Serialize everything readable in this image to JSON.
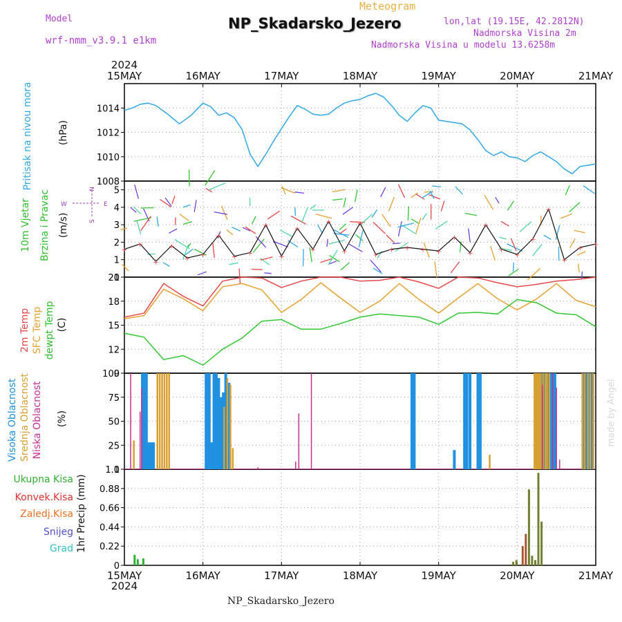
{
  "header": {
    "model_label": "Model",
    "model_name": "wrf-nmm_v3.9.1 e1km",
    "meteogram_label": "Meteogram",
    "station": "NP_Skadarsko_Jezero",
    "lonlat": "lon,lat (19.15E, 42.2812N)",
    "elevation": "Nadmorska Visina 2m",
    "model_elevation": "Nadmorska Visina u modelu 13.6258m",
    "footer_station": "NP_Skadarsko_Jezero",
    "watermark": "made by Angel"
  },
  "time_axis": {
    "year": "2024",
    "ticks": [
      "15MAY",
      "16MAY",
      "17MAY",
      "18MAY",
      "19MAY",
      "20MAY",
      "21MAY"
    ]
  },
  "colors": {
    "pressure": "#30a8e8",
    "temp2m": "#e84848",
    "sfc": "#e8a030",
    "dewpt": "#30c830",
    "high_cloud": "#2090e0",
    "mid_cloud": "#d8a030",
    "low_cloud": "#c83090",
    "total_precip": "#30b030",
    "convective": "#e03030",
    "frozen": "#e87020",
    "snow": "#5050d0",
    "graupel": "#30c0c0",
    "precip_bar": "#708030"
  },
  "chart_data": [
    {
      "type": "line",
      "panel": "pressure",
      "ylabel_name": "Pritisak na nivou mora",
      "ylabel_unit": "(hPa)",
      "ylim": [
        1008,
        1016
      ],
      "yticks": [
        "1014",
        "1012",
        "1010",
        "1008"
      ],
      "x_days": [
        0,
        0.1,
        0.2,
        0.3,
        0.4,
        0.55,
        0.7,
        0.85,
        1.0,
        1.1,
        1.2,
        1.3,
        1.4,
        1.5,
        1.6,
        1.7,
        1.8,
        1.9,
        2.0,
        2.1,
        2.2,
        2.3,
        2.4,
        2.5,
        2.6,
        2.7,
        2.8,
        2.9,
        3.0,
        3.1,
        3.2,
        3.3,
        3.4,
        3.5,
        3.6,
        3.7,
        3.8,
        3.9,
        4.0,
        4.1,
        4.2,
        4.3,
        4.4,
        4.5,
        4.6,
        4.7,
        4.8,
        4.9,
        5.0,
        5.1,
        5.2,
        5.3,
        5.4,
        5.5,
        5.6,
        5.7,
        5.8,
        5.9,
        6.0
      ],
      "series": [
        {
          "values": [
            1013.8,
            1014.0,
            1014.3,
            1014.4,
            1014.2,
            1013.5,
            1012.7,
            1013.4,
            1014.4,
            1014.1,
            1013.4,
            1013.6,
            1013.2,
            1012.2,
            1010.2,
            1009.2,
            1010.2,
            1011.3,
            1012.3,
            1013.3,
            1014.2,
            1013.9,
            1013.5,
            1013.4,
            1013.5,
            1014.0,
            1014.4,
            1014.6,
            1014.7,
            1015.0,
            1015.2,
            1014.9,
            1014.2,
            1013.4,
            1012.9,
            1013.6,
            1014.2,
            1014.0,
            1013.0,
            1012.9,
            1012.8,
            1012.7,
            1012.2,
            1011.4,
            1010.5,
            1010.1,
            1010.4,
            1010.0,
            1009.9,
            1009.6,
            1010.1,
            1010.4,
            1010.0,
            1009.6,
            1009.0,
            1008.6,
            1009.2,
            1009.3,
            1009.4
          ]
        }
      ]
    },
    {
      "type": "line",
      "panel": "wind",
      "ylabel_name1": "10m Vjetar",
      "ylabel_name2": "Brzina i Pravac",
      "ylabel_unit": "(m/s)",
      "compass": {
        "n": "N",
        "s": "S",
        "e": "E",
        "w": "W"
      },
      "ylim": [
        0,
        5.5
      ],
      "yticks": [
        "5",
        "4",
        "3",
        "2",
        "1",
        "0"
      ],
      "x_days": [
        0,
        0.2,
        0.4,
        0.6,
        0.8,
        1.0,
        1.2,
        1.4,
        1.6,
        1.8,
        2.0,
        2.2,
        2.4,
        2.6,
        2.8,
        3.0,
        3.2,
        3.4,
        3.6,
        3.8,
        4.0,
        4.2,
        4.4,
        4.6,
        4.8,
        5.0,
        5.2,
        5.4,
        5.6,
        5.8,
        6.0
      ],
      "series": [
        {
          "name": "speed",
          "values": [
            1.6,
            1.9,
            0.9,
            1.8,
            1.1,
            1.3,
            2.4,
            1.2,
            1.4,
            3.0,
            1.2,
            2.8,
            1.6,
            3.2,
            1.5,
            3.1,
            1.3,
            1.6,
            1.7,
            1.6,
            1.5,
            2.3,
            1.4,
            3.0,
            1.6,
            1.3,
            2.2,
            3.9,
            1.0,
            1.7,
            1.9
          ]
        }
      ]
    },
    {
      "type": "line",
      "panel": "temperature",
      "ylabel_names": [
        "2m Temp",
        "SFC Temp",
        "dewpt Temp"
      ],
      "ylabel_unit": "(C)",
      "ylim": [
        9,
        21
      ],
      "yticks": [
        "21",
        "18",
        "15",
        "12",
        "9"
      ],
      "x_days": [
        0,
        0.25,
        0.5,
        0.75,
        1.0,
        1.25,
        1.5,
        1.75,
        2.0,
        2.25,
        2.5,
        2.75,
        3.0,
        3.25,
        3.5,
        3.75,
        4.0,
        4.25,
        4.5,
        4.75,
        5.0,
        5.25,
        5.5,
        5.75,
        6.0
      ],
      "series": [
        {
          "name": "2m Temp",
          "values": [
            16,
            16.5,
            20.2,
            18.6,
            17.4,
            20.5,
            21,
            20.9,
            19.7,
            20.5,
            21,
            21.5,
            20.5,
            20.6,
            21,
            20.4,
            19.6,
            21.3,
            20.9,
            20.3,
            19.8,
            20.1,
            20.5,
            20.7,
            21
          ]
        },
        {
          "name": "SFC Temp",
          "values": [
            15.8,
            16.2,
            19.5,
            18.3,
            16.8,
            19.8,
            20.2,
            19.4,
            16.6,
            18.2,
            20.3,
            18.4,
            16.6,
            18,
            20.2,
            18.2,
            16.5,
            18.4,
            20.2,
            18.3,
            16.9,
            18.3,
            20.2,
            18.1,
            17.3
          ]
        },
        {
          "name": "dewpt Temp",
          "values": [
            14,
            13.5,
            10.7,
            11.2,
            10,
            12,
            13.4,
            15.5,
            15.7,
            14.5,
            14.5,
            15.2,
            16,
            16.4,
            16.2,
            16,
            15.1,
            16.5,
            16.6,
            16.4,
            18.2,
            17.8,
            16.5,
            16.3,
            14.8
          ]
        }
      ]
    },
    {
      "type": "bar",
      "panel": "clouds",
      "ylabel_names": [
        "Visoka Oblacnost",
        "Srednja Oblacnost",
        "Niska Oblacnost"
      ],
      "ylabel_unit": "(%)",
      "ylim": [
        0,
        100
      ],
      "yticks": [
        "100",
        "75",
        "50",
        "25",
        "0"
      ],
      "series": [
        {
          "name": "Visoka Oblacnost",
          "x_days": [
            0.23,
            0.26,
            0.28,
            0.31,
            0.34,
            0.37,
            1.04,
            1.06,
            1.08,
            1.11,
            1.14,
            1.17,
            1.2,
            1.23,
            1.26,
            1.29,
            1.33,
            3.66,
            3.69,
            4.2,
            4.33,
            4.36,
            4.4,
            4.5,
            4.53,
            5.25,
            5.28,
            5.31,
            5.34,
            5.37,
            5.4,
            5.43,
            5.45,
            5.48,
            5.85,
            5.88,
            5.92,
            5.95
          ],
          "values": [
            100,
            100,
            100,
            28,
            28,
            28,
            100,
            100,
            100,
            28,
            100,
            100,
            95,
            75,
            80,
            100,
            90,
            100,
            100,
            20,
            100,
            100,
            100,
            100,
            100,
            100,
            100,
            100,
            100,
            100,
            100,
            100,
            100,
            100,
            100,
            100,
            100,
            100
          ]
        },
        {
          "name": "Srednja Oblacnost",
          "x_days": [
            0.12,
            0.42,
            0.45,
            0.48,
            0.51,
            0.54,
            0.57,
            1.27,
            1.31,
            1.35,
            1.38,
            4.65,
            5.22,
            5.24,
            5.26,
            5.28,
            5.3,
            5.33,
            5.36,
            5.38,
            5.41,
            5.83,
            5.86,
            5.9,
            5.93,
            5.97
          ],
          "values": [
            30,
            100,
            100,
            100,
            100,
            100,
            100,
            65,
            95,
            88,
            22,
            15,
            100,
            100,
            100,
            100,
            100,
            100,
            100,
            100,
            100,
            100,
            100,
            100,
            100,
            100
          ]
        },
        {
          "name": "Niska Oblacnost",
          "x_days": [
            0.08,
            0.2,
            0.22,
            1.7,
            2.18,
            2.22,
            2.38,
            5.32,
            5.45,
            5.5,
            5.54
          ],
          "values": [
            100,
            60,
            85,
            2,
            8,
            58,
            100,
            88,
            100,
            85,
            10
          ]
        }
      ]
    },
    {
      "type": "bar",
      "panel": "precip",
      "ylabel_unit": "1hr Precip (mm)",
      "legend": [
        "Ukupna Kisa",
        "Konvek.Kisa",
        "Zaledj.Kisa",
        "Snijeg",
        "Grad"
      ],
      "ylim": [
        0,
        1.1
      ],
      "yticks": [
        "1.1",
        "0.88",
        "0.66",
        "0.44",
        "0.22",
        "0"
      ],
      "series": [
        {
          "name": "Ukupna Kisa",
          "x_days": [
            0.13,
            0.17,
            0.24,
            4.95,
            4.99,
            5.07,
            5.11,
            5.15,
            5.19,
            5.23,
            5.27,
            5.31
          ],
          "values": [
            0.12,
            0.07,
            0.08,
            0.04,
            0.06,
            0.22,
            0.36,
            0.87,
            0.11,
            0.06,
            1.06,
            0.5
          ]
        }
      ]
    }
  ]
}
